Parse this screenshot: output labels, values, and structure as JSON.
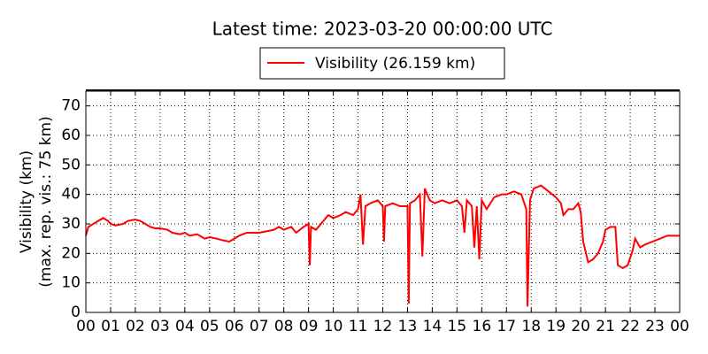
{
  "chart_data": {
    "type": "line",
    "title": "Latest time: 2023-03-20 00:00:00 UTC",
    "ylabel": [
      "Visibility (km)",
      "(max. rep. vis.: 75 km)"
    ],
    "x": [
      0,
      0.1,
      0.3,
      0.5,
      0.7,
      0.9,
      1.0,
      1.2,
      1.5,
      1.7,
      2.0,
      2.2,
      2.4,
      2.6,
      2.8,
      3.0,
      3.3,
      3.5,
      3.8,
      4.0,
      4.2,
      4.5,
      4.8,
      5.0,
      5.3,
      5.5,
      5.8,
      6.0,
      6.2,
      6.5,
      6.8,
      7.0,
      7.3,
      7.6,
      7.8,
      8.0,
      8.3,
      8.5,
      8.8,
      9.0,
      9.05,
      9.1,
      9.3,
      9.5,
      9.8,
      10.0,
      10.3,
      10.5,
      10.8,
      11.0,
      11.1,
      11.2,
      11.3,
      11.5,
      11.8,
      12.0,
      12.05,
      12.1,
      12.4,
      12.7,
      13.0,
      13.05,
      13.1,
      13.3,
      13.5,
      13.6,
      13.7,
      13.9,
      14.1,
      14.4,
      14.7,
      15.0,
      15.2,
      15.3,
      15.4,
      15.6,
      15.7,
      15.8,
      15.9,
      16.0,
      16.2,
      16.5,
      16.8,
      17.0,
      17.3,
      17.6,
      17.8,
      17.85,
      17.95,
      18.1,
      18.4,
      18.7,
      19.0,
      19.2,
      19.3,
      19.5,
      19.7,
      19.9,
      20.0,
      20.1,
      20.3,
      20.5,
      20.7,
      20.9,
      21.0,
      21.2,
      21.4,
      21.5,
      21.7,
      21.9,
      22.1,
      22.2,
      22.4,
      22.6,
      22.9,
      23.2,
      23.5,
      24
    ],
    "series": [
      {
        "name": "Visibility (26.159 km)",
        "color": "#ff0000",
        "values": [
          26,
          29,
          30,
          31,
          32,
          31,
          30,
          29.5,
          30,
          31,
          31.5,
          31,
          30,
          29,
          28.5,
          28.5,
          28,
          27,
          26.5,
          27,
          26,
          26.5,
          25,
          25.5,
          25,
          24.5,
          24,
          25,
          26,
          27,
          27,
          27,
          27.5,
          28,
          29,
          28,
          29,
          27,
          29,
          30,
          16,
          29,
          28,
          30,
          33,
          32,
          33,
          34,
          33,
          35,
          40,
          23,
          36,
          37,
          38,
          36,
          24,
          36,
          37,
          36,
          36,
          3,
          37,
          38,
          40,
          19,
          42,
          38,
          37,
          38,
          37,
          38,
          36,
          27,
          38,
          36,
          22,
          36,
          18,
          38,
          35,
          39,
          40,
          40,
          41,
          40,
          35,
          2,
          38,
          42,
          43,
          41,
          39,
          37,
          33,
          35,
          35,
          37,
          34,
          24,
          17,
          18,
          20,
          24,
          28,
          29,
          29,
          16,
          15,
          16,
          21,
          25,
          22,
          23,
          24,
          25,
          26,
          26
        ]
      }
    ],
    "xlim": [
      0,
      24
    ],
    "xticks": [
      {
        "value": 0,
        "label": "00"
      },
      {
        "value": 1,
        "label": "01"
      },
      {
        "value": 2,
        "label": "02"
      },
      {
        "value": 3,
        "label": "03"
      },
      {
        "value": 4,
        "label": "04"
      },
      {
        "value": 5,
        "label": "05"
      },
      {
        "value": 6,
        "label": "06"
      },
      {
        "value": 7,
        "label": "07"
      },
      {
        "value": 8,
        "label": "08"
      },
      {
        "value": 9,
        "label": "09"
      },
      {
        "value": 10,
        "label": "10"
      },
      {
        "value": 11,
        "label": "11"
      },
      {
        "value": 12,
        "label": "12"
      },
      {
        "value": 13,
        "label": "13"
      },
      {
        "value": 14,
        "label": "14"
      },
      {
        "value": 15,
        "label": "15"
      },
      {
        "value": 16,
        "label": "16"
      },
      {
        "value": 17,
        "label": "17"
      },
      {
        "value": 18,
        "label": "18"
      },
      {
        "value": 19,
        "label": "19"
      },
      {
        "value": 20,
        "label": "20"
      },
      {
        "value": 21,
        "label": "21"
      },
      {
        "value": 22,
        "label": "22"
      },
      {
        "value": 23,
        "label": "23"
      },
      {
        "value": 24,
        "label": "00"
      }
    ],
    "ylim": [
      0,
      75
    ],
    "yticks": [
      0,
      10,
      20,
      30,
      40,
      50,
      60,
      70
    ],
    "grid": true,
    "legend": "top"
  }
}
